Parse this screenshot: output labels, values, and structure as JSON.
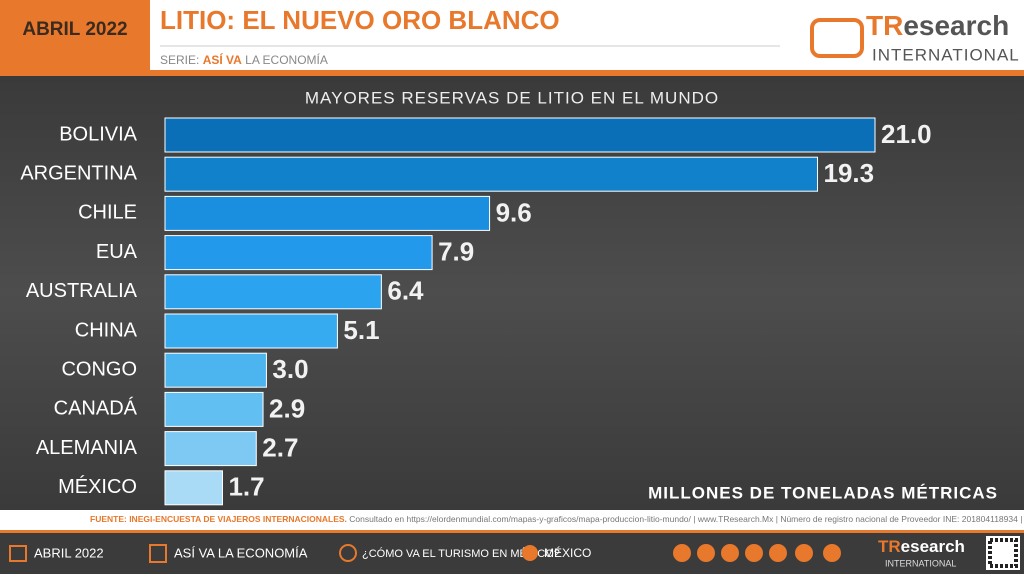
{
  "header": {
    "date": "ABRIL 2022",
    "title": "LITIO: EL NUEVO ORO BLANCO",
    "subtitle_prefix": "SERIE:",
    "subtitle_series": "ASÍ VA",
    "subtitle_suffix": "LA ECONOMÍA"
  },
  "logo": {
    "brand_a": "TR",
    "brand_b": "esearch",
    "brand_sub": "INTERNATIONAL"
  },
  "chart_data": {
    "type": "bar",
    "orientation": "horizontal",
    "title": "MAYORES RESERVAS DE LITIO EN EL MUNDO",
    "x_label": "MILLONES DE TONELADAS MÉTRICAS",
    "categories": [
      "BOLIVIA",
      "ARGENTINA",
      "CHILE",
      "EUA",
      "AUSTRALIA",
      "CHINA",
      "CONGO",
      "CANADÁ",
      "ALEMANIA",
      "MÉXICO"
    ],
    "values": [
      21.0,
      19.3,
      9.6,
      7.9,
      6.4,
      5.1,
      3.0,
      2.9,
      2.7,
      1.7
    ],
    "value_labels": [
      "21.0",
      "19.3",
      "9.6",
      "7.9",
      "6.4",
      "5.1",
      "3.0",
      "2.9",
      "2.7",
      "1.7"
    ],
    "colors": [
      "#0b6fb8",
      "#1181cc",
      "#1a8fe0",
      "#2299ea",
      "#2ba3ee",
      "#36abef",
      "#4cb5f0",
      "#62bff2",
      "#7ec9f3",
      "#a9daf6"
    ],
    "xlim": [
      0,
      21
    ]
  },
  "source": {
    "label": "FUENTE: INEGI-ENCUESTA DE VIAJEROS INTERNACIONALES.",
    "text": "Consultado en https://elordenmundial.com/mapas-y-graficos/mapa-produccion-litio-mundo/ | www.TResearch.Mx | Número de registro nacional de Proveedor INE: 201804118934 |"
  },
  "footer": {
    "date": "ABRIL 2022",
    "series": "ASÍ VA LA ECONOMÍA",
    "question": "¿CÓMO VA EL TURISMO EN MÉXICO?",
    "country": "MÉXICO"
  }
}
